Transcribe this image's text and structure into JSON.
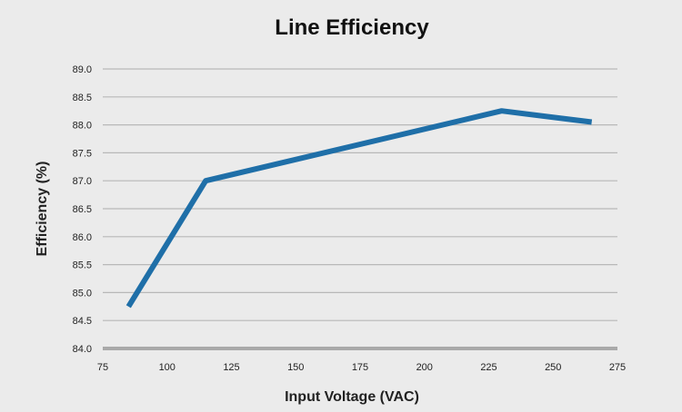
{
  "chart_data": {
    "type": "line",
    "title": "Line Efficiency",
    "xlabel": "Input Voltage (VAC)",
    "ylabel": "Efficiency (%)",
    "xlim": [
      75,
      275
    ],
    "ylim": [
      84.0,
      89.0
    ],
    "xticks": [
      "75",
      "100",
      "125",
      "150",
      "175",
      "200",
      "225",
      "250",
      "275"
    ],
    "yticks": [
      "84.0",
      "84.5",
      "85.0",
      "85.5",
      "86.0",
      "86.5",
      "87.0",
      "87.5",
      "88.0",
      "88.5",
      "89.0"
    ],
    "grid": true,
    "series": [
      {
        "color": "#1f6fa8",
        "points": [
          {
            "x": 85,
            "y": 84.75
          },
          {
            "x": 115,
            "y": 87.0
          },
          {
            "x": 230,
            "y": 88.25
          },
          {
            "x": 265,
            "y": 88.05
          }
        ]
      }
    ]
  }
}
